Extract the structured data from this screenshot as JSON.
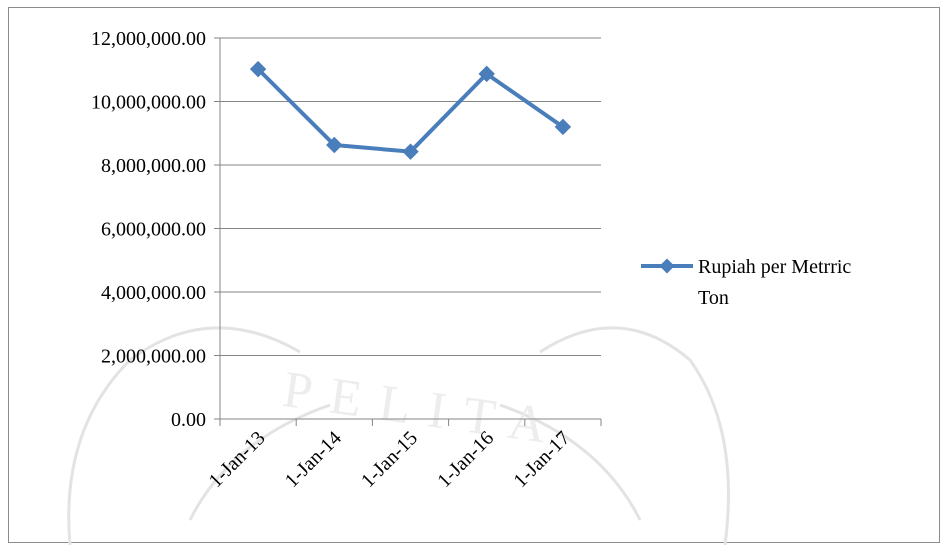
{
  "chart_data": {
    "type": "line",
    "categories": [
      "1-Jan-13",
      "1-Jan-14",
      "1-Jan-15",
      "1-Jan-16",
      "1-Jan-17"
    ],
    "series": [
      {
        "name": "Rupiah per Metrric Ton",
        "name_lines": [
          "Rupiah per Metrric",
          "Ton"
        ],
        "values": [
          11020000,
          8630000,
          8420000,
          10870000,
          9200000
        ],
        "color": "#4a7ebb"
      }
    ],
    "ylim": [
      0,
      12000000
    ],
    "yticks": [
      {
        "value": 0,
        "label": "0.00"
      },
      {
        "value": 2000000,
        "label": "2,000,000.00"
      },
      {
        "value": 4000000,
        "label": "4,000,000.00"
      },
      {
        "value": 6000000,
        "label": "6,000,000.00"
      },
      {
        "value": 8000000,
        "label": "8,000,000.00"
      },
      {
        "value": 10000000,
        "label": "10,000,000.00"
      },
      {
        "value": 12000000,
        "label": "12,000,000.00"
      }
    ],
    "grid": "horizontal",
    "legend_position": "right",
    "gridline_color": "#868686",
    "watermark_text": "PELITA"
  }
}
